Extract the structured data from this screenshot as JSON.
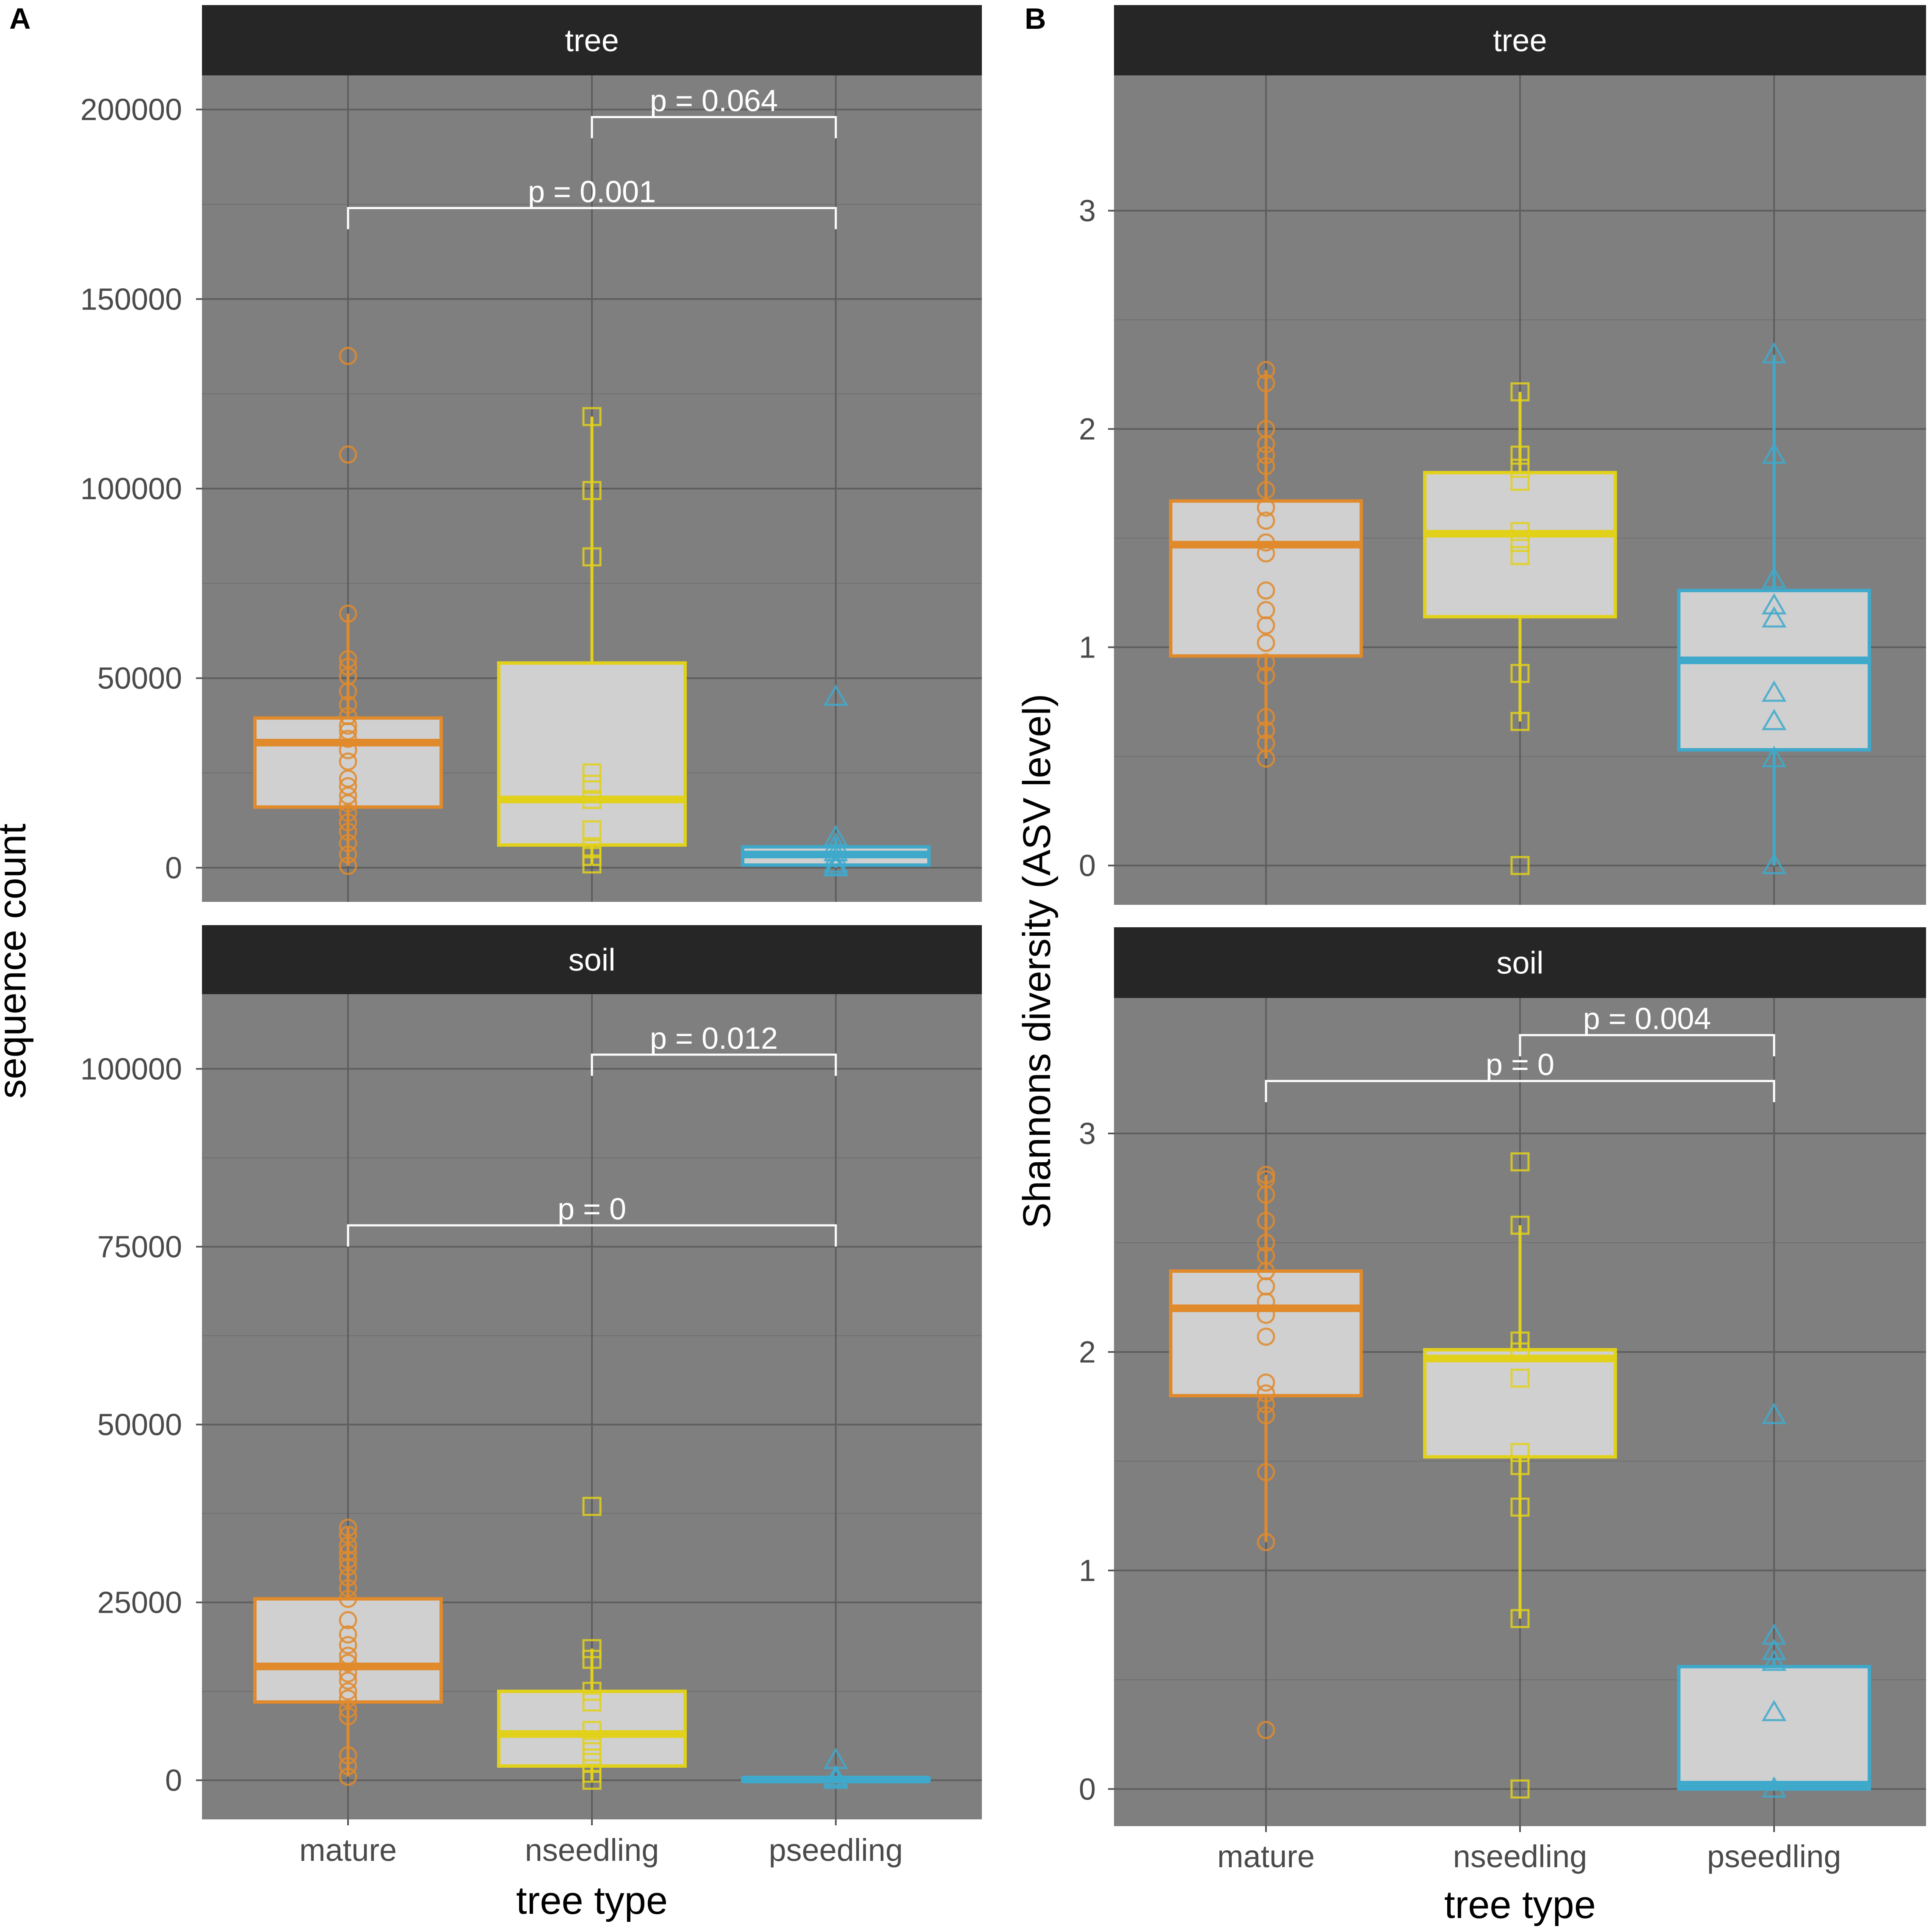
{
  "figure": {
    "x_label": "tree type",
    "categories": [
      "mature",
      "nseedling",
      "pseedling"
    ],
    "colors": {
      "mature": "#E08A2C",
      "nseedling": "#E2D11A",
      "pseedling": "#3FA9CB",
      "panel_bg": "#7f7f7f",
      "strip_bg": "#262626",
      "box_fill": "#d0d0d0"
    }
  },
  "chart_data": [
    {
      "type": "box",
      "panel_label": "A",
      "ylabel": "sequence count",
      "xlabel": "tree type",
      "categories": [
        "mature",
        "nseedling",
        "pseedling"
      ],
      "facets": [
        {
          "strip": "tree",
          "ylim": [
            -9000,
            209000
          ],
          "yticks": [
            0,
            50000,
            100000,
            150000,
            200000
          ],
          "ytick_labels": [
            "0",
            "50000",
            "100000",
            "150000",
            "200000"
          ],
          "boxes": [
            {
              "category": "mature",
              "q1": 16000,
              "median": 33000,
              "q3": 39500,
              "whisker_low": 500,
              "whisker_high": 67000,
              "points": [
                500,
                3500,
                6500,
                9500,
                12000,
                14500,
                17000,
                19000,
                21500,
                23500,
                28000,
                31000,
                34000,
                36000,
                37500,
                40000,
                43000,
                46500,
                50500,
                53000,
                55000,
                67000,
                109000,
                135000
              ]
            },
            {
              "category": "nseedling",
              "q1": 6000,
              "median": 18000,
              "q3": 54000,
              "whisker_low": 1000,
              "whisker_high": 119000,
              "points": [
                1000,
                3000,
                5000,
                10000,
                18000,
                22000,
                25000,
                82000,
                99500,
                119000
              ]
            },
            {
              "category": "pseedling",
              "q1": 700,
              "median": 3500,
              "q3": 5500,
              "whisker_low": 0,
              "whisker_high": 8000,
              "points": [
                0,
                300,
                1000,
                2500,
                4000,
                6000,
                8000,
                45000
              ]
            }
          ],
          "brackets": [
            {
              "from": "nseedling",
              "to": "pseedling",
              "y": 198000,
              "label": "p = 0.064"
            },
            {
              "from": "mature",
              "to": "pseedling",
              "y": 174000,
              "label": "p = 0.001"
            }
          ]
        },
        {
          "strip": "soil",
          "ylim": [
            -5500,
            110500
          ],
          "yticks": [
            0,
            25000,
            50000,
            75000,
            100000
          ],
          "ytick_labels": [
            "0",
            "25000",
            "50000",
            "75000",
            "100000"
          ],
          "boxes": [
            {
              "category": "mature",
              "q1": 11000,
              "median": 16000,
              "q3": 25500,
              "whisker_low": 500,
              "whisker_high": 35500,
              "points": [
                500,
                2000,
                3500,
                9000,
                10000,
                11500,
                12500,
                14000,
                15000,
                16500,
                17500,
                19000,
                20500,
                22500,
                25500,
                27000,
                28500,
                30000,
                31000,
                32000,
                33000,
                34500,
                35500
              ]
            },
            {
              "category": "nseedling",
              "q1": 2000,
              "median": 6500,
              "q3": 12500,
              "whisker_low": 0,
              "whisker_high": 18500,
              "points": [
                0,
                1000,
                2500,
                4000,
                5500,
                7000,
                11000,
                12500,
                17000,
                18500,
                38500
              ]
            },
            {
              "category": "pseedling",
              "q1": 0,
              "median": 100,
              "q3": 300,
              "whisker_low": 0,
              "whisker_high": 500,
              "points": [
                0,
                200,
                400,
                2800
              ]
            }
          ],
          "brackets": [
            {
              "from": "nseedling",
              "to": "pseedling",
              "y": 102000,
              "label": "p = 0.012"
            },
            {
              "from": "mature",
              "to": "pseedling",
              "y": 78000,
              "label": "p = 0"
            }
          ]
        }
      ]
    },
    {
      "type": "box",
      "panel_label": "B",
      "ylabel": "Shannons diversity (ASV level)",
      "xlabel": "tree type",
      "categories": [
        "mature",
        "nseedling",
        "pseedling"
      ],
      "facets": [
        {
          "strip": "tree",
          "ylim": [
            -0.18,
            3.62
          ],
          "yticks": [
            0,
            1,
            2,
            3
          ],
          "ytick_labels": [
            "0",
            "1",
            "2",
            "3"
          ],
          "boxes": [
            {
              "category": "mature",
              "q1": 0.96,
              "median": 1.47,
              "q3": 1.67,
              "whisker_low": 0.49,
              "whisker_high": 2.27,
              "points": [
                0.49,
                0.56,
                0.62,
                0.68,
                0.87,
                0.93,
                1.02,
                1.1,
                1.17,
                1.26,
                1.43,
                1.48,
                1.58,
                1.64,
                1.72,
                1.83,
                1.88,
                1.93,
                2.0,
                2.21,
                2.27
              ]
            },
            {
              "category": "nseedling",
              "q1": 1.14,
              "median": 1.52,
              "q3": 1.8,
              "whisker_low": 0.66,
              "whisker_high": 2.17,
              "points": [
                0.0,
                0.66,
                0.88,
                1.42,
                1.48,
                1.53,
                1.76,
                1.82,
                1.88,
                2.17
              ]
            },
            {
              "category": "pseedling",
              "q1": 0.53,
              "median": 0.94,
              "q3": 1.26,
              "whisker_low": 0.0,
              "whisker_high": 2.34,
              "points": [
                0.0,
                0.49,
                0.66,
                0.79,
                1.13,
                1.19,
                1.31,
                1.88,
                2.34
              ]
            }
          ],
          "brackets": []
        },
        {
          "strip": "soil",
          "ylim": [
            -0.17,
            3.62
          ],
          "yticks": [
            0,
            1,
            2,
            3
          ],
          "ytick_labels": [
            "0",
            "1",
            "2",
            "3"
          ],
          "boxes": [
            {
              "category": "mature",
              "q1": 1.8,
              "median": 2.2,
              "q3": 2.37,
              "whisker_low": 1.13,
              "whisker_high": 2.81,
              "points": [
                0.27,
                1.13,
                1.45,
                1.71,
                1.76,
                1.81,
                1.86,
                2.07,
                2.17,
                2.23,
                2.3,
                2.37,
                2.44,
                2.5,
                2.6,
                2.72,
                2.79,
                2.81
              ]
            },
            {
              "category": "nseedling",
              "q1": 1.52,
              "median": 1.97,
              "q3": 2.01,
              "whisker_low": 0.78,
              "whisker_high": 2.58,
              "points": [
                0.0,
                0.78,
                1.29,
                1.48,
                1.54,
                1.88,
                2.0,
                2.05,
                2.58,
                2.87
              ]
            },
            {
              "category": "pseedling",
              "q1": 0.0,
              "median": 0.02,
              "q3": 0.56,
              "whisker_low": 0.0,
              "whisker_high": 0.6,
              "points": [
                0.0,
                0.35,
                0.58,
                0.63,
                0.7,
                1.71
              ]
            }
          ],
          "brackets": [
            {
              "from": "nseedling",
              "to": "pseedling",
              "y": 3.45,
              "label": "p = 0.004"
            },
            {
              "from": "mature",
              "to": "pseedling",
              "y": 3.24,
              "label": "p = 0"
            }
          ]
        }
      ]
    }
  ]
}
